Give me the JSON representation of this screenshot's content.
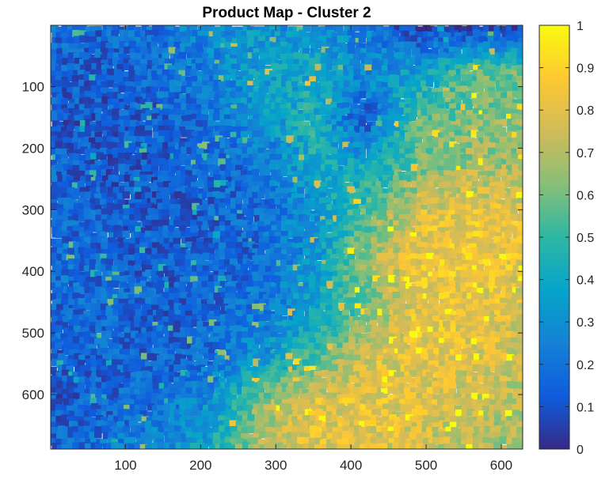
{
  "chart_data": {
    "type": "heatmap",
    "title": "Product Map - Cluster 2",
    "xlabel": "",
    "ylabel": "",
    "x_range": [
      0.5,
      628.5
    ],
    "y_range": [
      0.5,
      688.5
    ],
    "y_reversed": true,
    "x_ticks": [
      100,
      200,
      300,
      400,
      500,
      600
    ],
    "y_ticks": [
      100,
      200,
      300,
      400,
      500,
      600
    ],
    "x_tick_labels": [
      "100",
      "200",
      "300",
      "400",
      "500",
      "600"
    ],
    "y_tick_labels": [
      "100",
      "200",
      "300",
      "400",
      "500",
      "600"
    ],
    "colorbar": {
      "colormap": "parula",
      "range": [
        0,
        1
      ],
      "ticks": [
        0,
        0.1,
        0.2,
        0.3,
        0.4,
        0.5,
        0.6,
        0.7,
        0.8,
        0.9,
        1
      ],
      "tick_labels": [
        "0",
        "0.1",
        "0.2",
        "0.3",
        "0.4",
        "0.5",
        "0.6",
        "0.7",
        "0.8",
        "0.9",
        "1"
      ],
      "position": "right"
    },
    "colormap_stops": [
      "#352a87",
      "#0f5cdd",
      "#1481d6",
      "#06a4ca",
      "#2eb7a4",
      "#87bf77",
      "#d1bb59",
      "#fec832",
      "#f9fb0e"
    ],
    "grid": false,
    "approx_value_field": {
      "description_of_grid": "coarse 10x10 estimate of the underlying intensity, rows top to bottom (y 1 to 688), columns left to right (x 1 to 628)",
      "rows": [
        [
          0.18,
          0.16,
          0.2,
          0.28,
          0.32,
          0.3,
          0.24,
          0.04,
          0.03,
          0.04
        ],
        [
          0.15,
          0.14,
          0.18,
          0.25,
          0.36,
          0.4,
          0.28,
          0.35,
          0.55,
          0.6
        ],
        [
          0.12,
          0.12,
          0.14,
          0.2,
          0.3,
          0.46,
          0.1,
          0.58,
          0.62,
          0.65
        ],
        [
          0.14,
          0.12,
          0.12,
          0.16,
          0.2,
          0.4,
          0.4,
          0.6,
          0.68,
          0.66
        ],
        [
          0.18,
          0.14,
          0.12,
          0.14,
          0.18,
          0.3,
          0.55,
          0.78,
          0.82,
          0.8
        ],
        [
          0.2,
          0.16,
          0.14,
          0.14,
          0.18,
          0.32,
          0.65,
          0.84,
          0.85,
          0.82
        ],
        [
          0.16,
          0.18,
          0.14,
          0.16,
          0.22,
          0.36,
          0.6,
          0.82,
          0.82,
          0.78
        ],
        [
          0.14,
          0.16,
          0.15,
          0.18,
          0.3,
          0.52,
          0.76,
          0.82,
          0.8,
          0.75
        ],
        [
          0.12,
          0.14,
          0.18,
          0.3,
          0.62,
          0.8,
          0.82,
          0.8,
          0.74,
          0.7
        ],
        [
          0.16,
          0.2,
          0.28,
          0.4,
          0.72,
          0.8,
          0.8,
          0.76,
          0.7,
          0.65
        ]
      ]
    }
  }
}
